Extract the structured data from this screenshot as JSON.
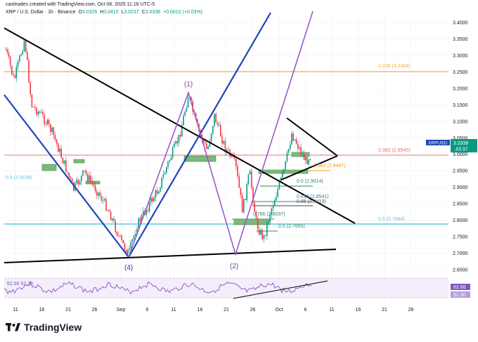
{
  "header": {
    "attribution": "casitrades created with TradingView.com, Oct 06, 2025 11:16 UTC-5",
    "symbol": "XRP / U.S. Dollar · 1h · Binance",
    "open_label": "O",
    "open_value": "3.0326",
    "high_label": "H",
    "high_value": "3.0415",
    "low_label": "L",
    "low_value": "3.0237",
    "close_label": "C",
    "close_value": "3.0338",
    "change": "+0.0010 (+0.03%)"
  },
  "price_axis": {
    "ticks": [
      "3.4000",
      "3.3500",
      "3.3000",
      "3.2500",
      "3.2000",
      "3.1500",
      "3.1000",
      "3.0500",
      "3.0000",
      "2.9500",
      "2.9000",
      "2.8500",
      "2.8000",
      "2.7500",
      "2.7000",
      "2.6500"
    ],
    "ticker_label": "XRPUSD",
    "ticker_price": "3.0338",
    "ticker_countdown": "43:37"
  },
  "time_axis": {
    "ticks": [
      "11",
      "16",
      "21",
      "26",
      "Sep",
      "6",
      "11",
      "16",
      "21",
      "26",
      "Oct",
      "6",
      "11",
      "16",
      "21",
      "26"
    ]
  },
  "fib_labels": {
    "f236": "0.236 (3.2494)",
    "f382": "0.382 (2.9945)",
    "f382b": "0.382 (2.9487)",
    "f5a": "0.5 (2.9158)",
    "f5b": "0.5 (2.9014)",
    "f618": "0.618 (2.8541)",
    "f65": "0.65 (2.8413)",
    "f786": "0.786 (2.8037)",
    "f5c": "0.5 (2.7665)",
    "f5d": "0.5 (2.7884)"
  },
  "waves": {
    "w1": "(1)",
    "w2": "(2)",
    "w4": "(4)"
  },
  "rsi": {
    "values_shown": "62.66 52.30",
    "badge_top": "62.66",
    "badge_bottom": "52.30"
  },
  "footer": {
    "brand": "TradingView"
  },
  "colors": {
    "up": "#089981",
    "down": "#f23645",
    "trend_blue": "#1f44b8",
    "wave_purple": "#9b59c7",
    "orange_line": "#f5b041",
    "pink_line": "#f4a6a6",
    "cyan_line": "#5ec8e5",
    "black_line": "#000000",
    "green_zone": "#7cb87c"
  }
}
